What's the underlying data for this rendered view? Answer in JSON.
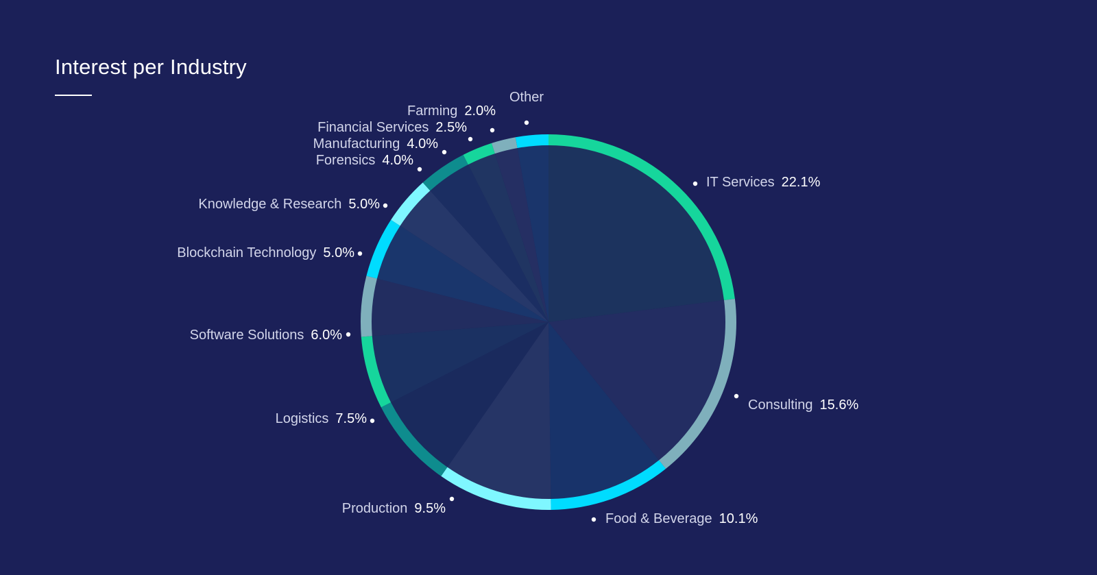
{
  "chart_data": {
    "type": "pie",
    "title": "Interest per Industry",
    "slices": [
      {
        "label": "IT Services",
        "pct_label": "22.1%",
        "value": 22.1
      },
      {
        "label": "Consulting",
        "pct_label": "15.6%",
        "value": 15.6
      },
      {
        "label": "Food & Beverage",
        "pct_label": "10.1%",
        "value": 10.1
      },
      {
        "label": "Production",
        "pct_label": "9.5%",
        "value": 9.5
      },
      {
        "label": "Logistics",
        "pct_label": "7.5%",
        "value": 7.5
      },
      {
        "label": "Software Solutions",
        "pct_label": "6.0%",
        "value": 6.0
      },
      {
        "label": "Blockchain Technology",
        "pct_label": "5.0%",
        "value": 5.0
      },
      {
        "label": "Knowledge & Research",
        "pct_label": "5.0%",
        "value": 5.0
      },
      {
        "label": "Forensics",
        "pct_label": "4.0%",
        "value": 4.0
      },
      {
        "label": "Manufacturing",
        "pct_label": "4.0%",
        "value": 4.0
      },
      {
        "label": "Financial Services",
        "pct_label": "2.5%",
        "value": 2.5
      },
      {
        "label": "Farming",
        "pct_label": "2.0%",
        "value": 2.0
      },
      {
        "label": "Other",
        "pct_label": "",
        "value": 2.7
      }
    ]
  },
  "colors": {
    "background": "#1b2058",
    "ring": [
      "#16d69c",
      "#7fb0bc",
      "#00dcff",
      "#7ff7ff",
      "#0e8c8e",
      "#16d69c",
      "#7fb0bc",
      "#00dcff",
      "#7ff7ff",
      "#0e8c8e",
      "#16d69c",
      "#7fb0bc",
      "#00dcff"
    ],
    "fill": [
      "#1c335e",
      "#232d62",
      "#18336a",
      "#263566",
      "#1a2a5d",
      "#1b3162",
      "#222d60",
      "#1a366c",
      "#26386a",
      "#1b2e62",
      "#203562",
      "#252f63",
      "#1a356b"
    ]
  }
}
